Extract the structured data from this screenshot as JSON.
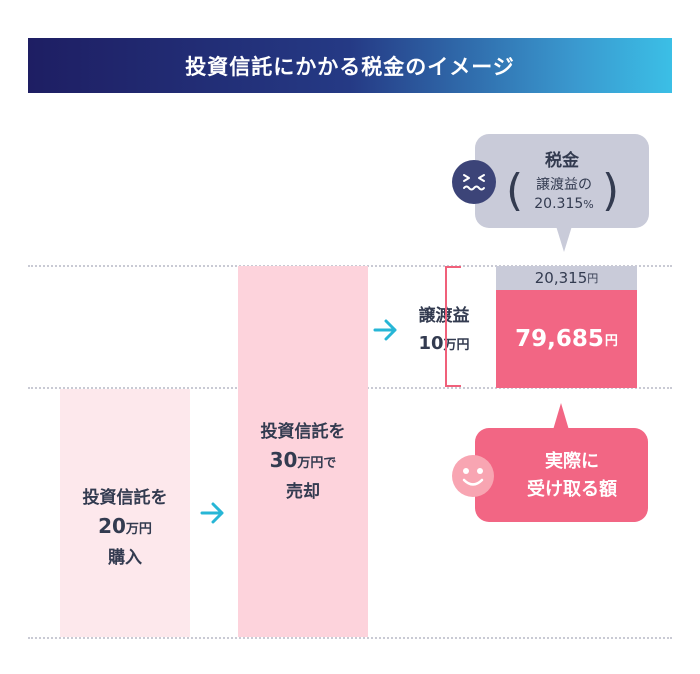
{
  "title": "投資信託にかかる税金のイメージ",
  "buy": {
    "line1": "投資信託を",
    "num": "20",
    "unit": "万円",
    "line3": "購入"
  },
  "sell": {
    "line1": "投資信託を",
    "num": "30",
    "unit": "万円で",
    "line3": "売却"
  },
  "gain": {
    "line1": "譲渡益",
    "num": "10",
    "unit": "万円"
  },
  "tax_amount": {
    "value": "20,315",
    "unit": "円"
  },
  "net_amount": {
    "value": "79,685",
    "unit": "円"
  },
  "tax_bubble": {
    "title": "税金",
    "detail_line1": "譲渡益の",
    "detail_num": "20.315",
    "detail_pct": "%"
  },
  "net_bubble": {
    "line1": "実際に",
    "line2": "受け取る額"
  },
  "colors": {
    "accent_pink": "#f26684",
    "arrow_cyan": "#27b6d6",
    "navy": "#1e1e63",
    "gray_tax": "#c9cbd9"
  }
}
